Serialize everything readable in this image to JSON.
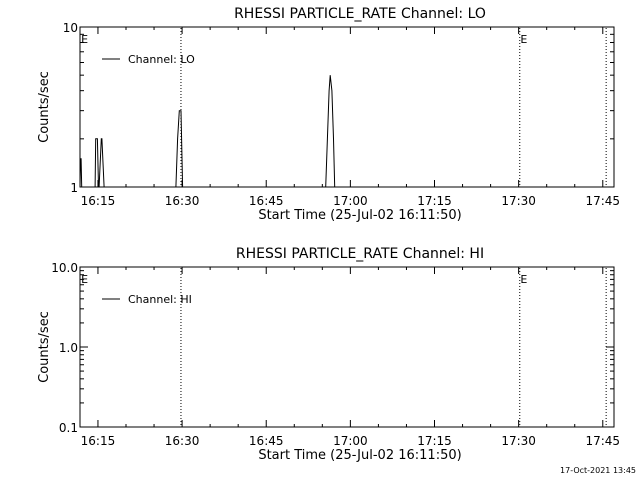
{
  "footer": {
    "timestamp": "17-Oct-2021 13:45"
  },
  "chart_data": [
    {
      "type": "line",
      "title": "RHESSI PARTICLE_RATE Channel: LO",
      "xlabel": "Start Time (25-Jul-02 16:11:50)",
      "ylabel": "Counts/sec",
      "yscale": "log",
      "ylim": [
        1,
        10
      ],
      "ytick_values": [
        1,
        10
      ],
      "ytick_labels": [
        "1",
        "10"
      ],
      "xlim_minutes": [
        16.8,
        112.0
      ],
      "xtick_values": [
        20,
        35,
        50,
        65,
        80,
        95,
        110
      ],
      "xtick_labels": [
        "16:15",
        "16:30",
        "16:45",
        "17:00",
        "17:15",
        "17:30",
        "17:45"
      ],
      "grid": false,
      "legend": {
        "position": "top-left",
        "entries": [
          "Channel: LO"
        ]
      },
      "annotations": [
        "E",
        "E"
      ],
      "annotation_minutes": [
        17.0,
        95.3
      ],
      "vlines_minutes": [
        34.8,
        95.2,
        110.6
      ],
      "series": [
        {
          "name": "Channel: LO",
          "x": [
            16.8,
            16.9,
            17.0,
            17.1,
            19.5,
            19.6,
            19.9,
            20.1,
            20.2,
            20.6,
            20.7,
            21.1,
            21.2,
            21.6,
            21.8,
            33.9,
            34.2,
            34.5,
            34.8,
            35.1,
            35.3,
            60.6,
            60.9,
            61.2,
            61.4,
            61.7,
            62.0,
            62.2
          ],
          "y": [
            1,
            1.5,
            1.5,
            1,
            1,
            2,
            2,
            1,
            1,
            2,
            2,
            1,
            1,
            1,
            1,
            1,
            2,
            3,
            3,
            1,
            1,
            1,
            2,
            4,
            5,
            4,
            2,
            1
          ]
        }
      ]
    },
    {
      "type": "line",
      "title": "RHESSI PARTICLE_RATE Channel: HI",
      "xlabel": "Start Time (25-Jul-02 16:11:50)",
      "ylabel": "Counts/sec",
      "yscale": "log",
      "ylim": [
        0.1,
        10
      ],
      "ytick_values": [
        0.1,
        1,
        10
      ],
      "ytick_labels": [
        "0.1",
        "1.0",
        "10.0"
      ],
      "xlim_minutes": [
        16.8,
        112.0
      ],
      "xtick_values": [
        20,
        35,
        50,
        65,
        80,
        95,
        110
      ],
      "xtick_labels": [
        "16:15",
        "16:30",
        "16:45",
        "17:00",
        "17:15",
        "17:30",
        "17:45"
      ],
      "grid": false,
      "legend": {
        "position": "top-left",
        "entries": [
          "Channel: HI"
        ]
      },
      "annotations": [
        "E",
        "E"
      ],
      "annotation_minutes": [
        17.0,
        95.3
      ],
      "vlines_minutes": [
        34.8,
        95.2,
        110.6
      ],
      "series": [
        {
          "name": "Channel: HI",
          "x": [],
          "y": []
        }
      ]
    }
  ]
}
